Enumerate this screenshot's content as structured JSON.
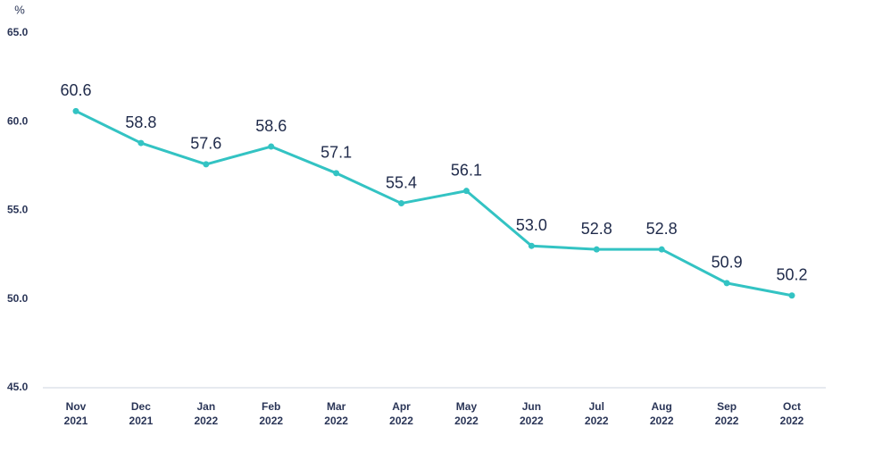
{
  "chart_data": {
    "type": "line",
    "y_unit": "%",
    "x": [
      "Nov 2021",
      "Dec 2021",
      "Jan 2022",
      "Feb 2022",
      "Mar 2022",
      "Apr 2022",
      "May 2022",
      "Jun 2022",
      "Jul 2022",
      "Aug 2022",
      "Sep 2022",
      "Oct 2022"
    ],
    "series": [
      {
        "name": null,
        "color": "#33c3c3",
        "values": [
          60.6,
          58.8,
          57.6,
          58.6,
          57.1,
          55.4,
          56.1,
          53.0,
          52.8,
          52.8,
          50.9,
          50.2
        ],
        "value_labels": [
          "60.6",
          "58.8",
          "57.6",
          "58.6",
          "57.1",
          "55.4",
          "56.1",
          "53.0",
          "52.8",
          "52.8",
          "50.9",
          "50.2"
        ]
      }
    ],
    "ylim": [
      45,
      65
    ],
    "yticks": [
      {
        "value": 45,
        "label": "45.0"
      },
      {
        "value": 50,
        "label": "50.0"
      },
      {
        "value": 55,
        "label": "55.0"
      },
      {
        "value": 60,
        "label": "60.0"
      },
      {
        "value": 65,
        "label": "65.0"
      }
    ],
    "grid": false
  }
}
